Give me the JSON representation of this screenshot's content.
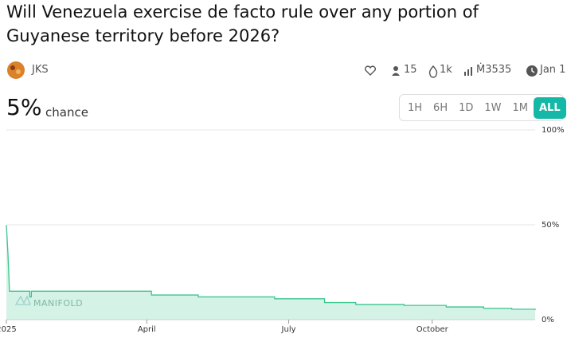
{
  "header": {
    "title": "Will Venezuela exercise de facto rule over any portion of Guyanese territory before 2026?",
    "author": "JKS"
  },
  "stats": {
    "traders": "15",
    "volume": "1k",
    "liquidity": "Ṁ3535",
    "close_date": "Jan 1"
  },
  "probability": {
    "value": "5%",
    "label": "chance"
  },
  "time_ranges": [
    "1H",
    "6H",
    "1D",
    "1W",
    "1M",
    "ALL"
  ],
  "selected_range": 5,
  "watermark": "MANIFOLD",
  "chart_data": {
    "type": "line",
    "x": [
      0,
      1,
      2,
      15,
      15,
      16,
      16,
      93,
      93,
      123,
      123,
      172,
      172,
      204,
      204,
      224,
      224,
      255,
      255,
      282,
      282,
      306,
      306,
      324,
      324,
      339,
      339
    ],
    "series": [
      {
        "color": "#3cc48f",
        "fill": "#d4f3e6",
        "values": [
          50,
          35,
          15,
          15,
          12,
          12,
          15,
          15,
          13,
          13,
          12,
          12,
          11,
          11,
          9,
          9,
          8,
          8,
          7.5,
          7.5,
          6.7,
          6.7,
          6,
          6,
          5.5,
          5.5,
          5
        ]
      }
    ],
    "xlim": [
      0,
      339
    ],
    "xticks": [
      {
        "value": 0,
        "label": "2025"
      },
      {
        "value": 90,
        "label": "April"
      },
      {
        "value": 181,
        "label": "July"
      },
      {
        "value": 273,
        "label": "October"
      }
    ],
    "ylim": [
      0,
      100
    ],
    "yticks": [
      {
        "value": 0,
        "label": "0%"
      },
      {
        "value": 50,
        "label": "50%"
      },
      {
        "value": 100,
        "label": "100%"
      }
    ],
    "grid": true
  }
}
